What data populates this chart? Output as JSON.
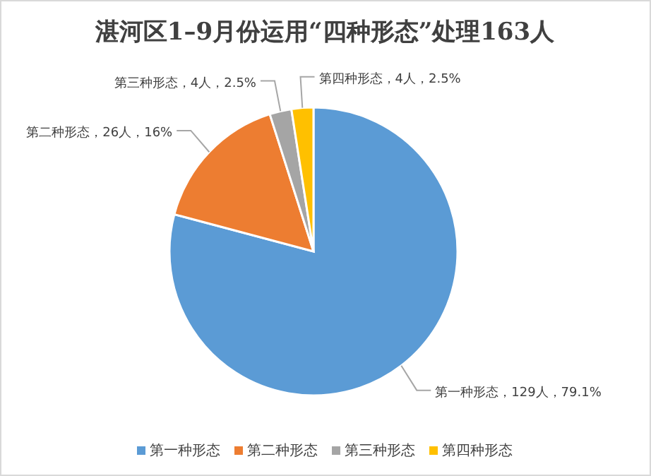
{
  "chart_data": {
    "type": "pie",
    "title": "湛河区1–9月份运用“四种形态”处理163人",
    "categories": [
      "第一种形态",
      "第二种形态",
      "第三种形态",
      "第四种形态"
    ],
    "values": [
      129,
      26,
      4,
      4
    ],
    "colors": [
      "#5b9bd5",
      "#ed7d31",
      "#a5a5a5",
      "#ffc000"
    ],
    "value_labels": [
      "第一种形态，129人，79.1%",
      "第二种形态，26人，16%",
      "第三种形态，4人，2.5%",
      "第四种形态，4人，2.5%"
    ],
    "legend": "bottom"
  }
}
